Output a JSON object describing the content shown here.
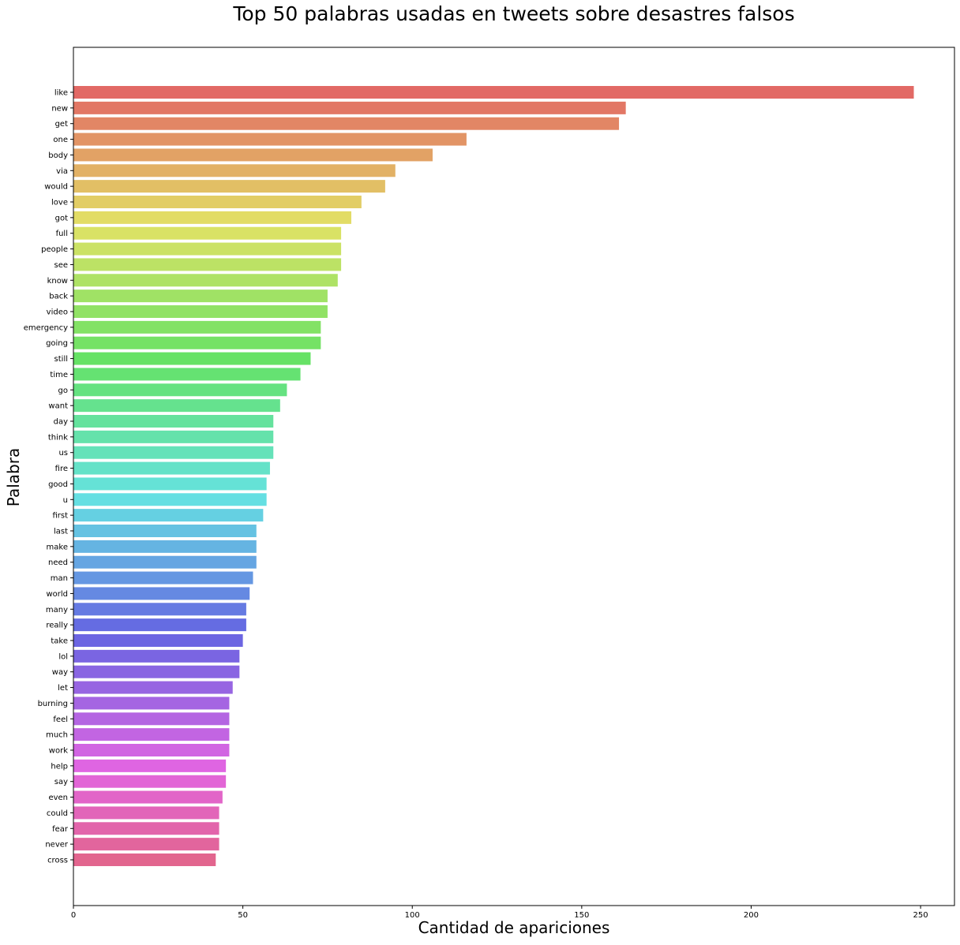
{
  "chart_data": {
    "type": "bar",
    "orientation": "horizontal",
    "title": "Top 50 palabras usadas en tweets sobre desastres falsos",
    "xlabel": "Cantidad de apariciones",
    "ylabel": "Palabra",
    "xlim": [
      0,
      260
    ],
    "xticks": [
      0,
      50,
      100,
      150,
      200,
      250
    ],
    "grid": false,
    "legend": "none",
    "palette": "husl",
    "categories": [
      "like",
      "new",
      "get",
      "one",
      "body",
      "via",
      "would",
      "love",
      "got",
      "full",
      "people",
      "see",
      "know",
      "back",
      "video",
      "emergency",
      "going",
      "still",
      "time",
      "go",
      "want",
      "day",
      "think",
      "us",
      "fire",
      "good",
      "u",
      "first",
      "last",
      "make",
      "need",
      "man",
      "world",
      "many",
      "really",
      "take",
      "lol",
      "way",
      "let",
      "burning",
      "feel",
      "much",
      "work",
      "help",
      "say",
      "even",
      "could",
      "fear",
      "never",
      "cross"
    ],
    "values": [
      248,
      163,
      161,
      116,
      106,
      95,
      92,
      85,
      82,
      79,
      79,
      79,
      78,
      75,
      75,
      73,
      73,
      70,
      67,
      63,
      61,
      59,
      59,
      59,
      58,
      57,
      57,
      56,
      54,
      54,
      54,
      53,
      52,
      51,
      51,
      50,
      49,
      49,
      47,
      46,
      46,
      46,
      46,
      45,
      45,
      44,
      43,
      43,
      43,
      42
    ]
  }
}
